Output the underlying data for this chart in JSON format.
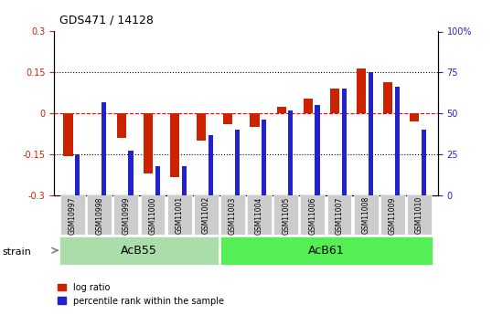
{
  "title": "GDS471 / 14128",
  "samples": [
    "GSM10997",
    "GSM10998",
    "GSM10999",
    "GSM11000",
    "GSM11001",
    "GSM11002",
    "GSM11003",
    "GSM11004",
    "GSM11005",
    "GSM11006",
    "GSM11007",
    "GSM11008",
    "GSM11009",
    "GSM11010"
  ],
  "log_ratio": [
    -0.155,
    0.0,
    -0.09,
    -0.22,
    -0.235,
    -0.1,
    -0.04,
    -0.05,
    0.025,
    0.055,
    0.09,
    0.165,
    0.115,
    -0.03
  ],
  "percentile_rank": [
    25,
    57,
    27,
    18,
    18,
    37,
    40,
    46,
    52,
    55,
    65,
    75,
    66,
    40
  ],
  "ylim_left": [
    -0.3,
    0.3
  ],
  "ylim_right": [
    0,
    100
  ],
  "bar_width": 0.35,
  "log_color": "#cc2200",
  "pct_color": "#2222cc",
  "acb55_count": 6,
  "acb61_count": 8,
  "acb55_label": "AcB55",
  "acb61_label": "AcB61",
  "strain_label": "strain",
  "legend_log": "log ratio",
  "legend_pct": "percentile rank within the sample",
  "acb55_color": "#aaddaa",
  "acb61_color": "#55ee55",
  "tick_bg_color": "#cccccc",
  "right_ticks": [
    0,
    25,
    50,
    75,
    100
  ],
  "right_tick_labels": [
    "0",
    "25",
    "50",
    "75",
    "100%"
  ]
}
